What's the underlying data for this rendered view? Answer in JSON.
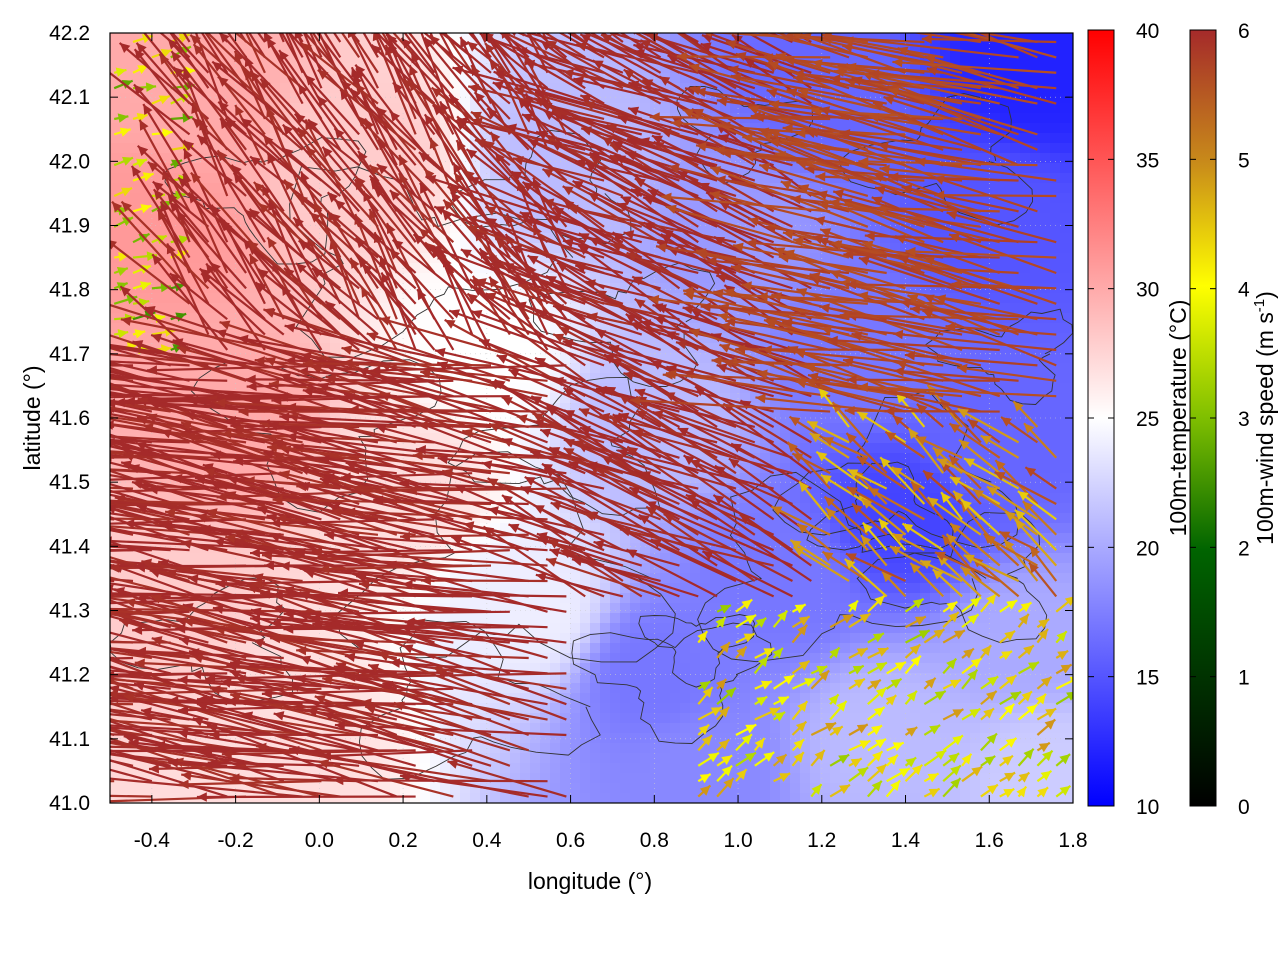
{
  "chart_data": {
    "type": "heatmap",
    "title": "",
    "xlabel": "longitude (°)",
    "ylabel": "latitude (°)",
    "xlim": [
      -0.5,
      1.8
    ],
    "ylim": [
      41.0,
      42.2
    ],
    "x_ticks": [
      "-0.4",
      "-0.2",
      "0.0",
      "0.2",
      "0.4",
      "0.6",
      "0.8",
      "1.0",
      "1.2",
      "1.4",
      "1.6",
      "1.8"
    ],
    "x_tick_values": [
      -0.4,
      -0.2,
      0.0,
      0.2,
      0.4,
      0.6,
      0.8,
      1.0,
      1.2,
      1.4,
      1.6,
      1.8
    ],
    "y_ticks": [
      "41.0",
      "41.1",
      "41.2",
      "41.3",
      "41.4",
      "41.5",
      "41.6",
      "41.7",
      "41.8",
      "41.9",
      "42.0",
      "42.1",
      "42.2"
    ],
    "y_tick_values": [
      41.0,
      41.1,
      41.2,
      41.3,
      41.4,
      41.5,
      41.6,
      41.7,
      41.8,
      41.9,
      42.0,
      42.1,
      42.2
    ],
    "temperature_colorbar": {
      "label": "100m-temperature (°C)",
      "range": [
        10,
        40
      ],
      "ticks": [
        "10",
        "15",
        "20",
        "25",
        "30",
        "35",
        "40"
      ],
      "tick_values": [
        10,
        15,
        20,
        25,
        30,
        35,
        40
      ],
      "colors": [
        "#0000ff",
        "#ffffff",
        "#ff0000"
      ]
    },
    "wind_colorbar": {
      "label_main": "100m-wind speed (m s",
      "label_sup": "-1",
      "label_end": ")",
      "range": [
        0,
        6
      ],
      "ticks": [
        "0",
        "1",
        "2",
        "3",
        "4",
        "5",
        "6"
      ],
      "tick_values": [
        0,
        1,
        2,
        3,
        4,
        5,
        6
      ],
      "colors": [
        "#000000",
        "#006400",
        "#7fbf00",
        "#ffff00",
        "#d4a017",
        "#c0641e",
        "#a52a2a"
      ]
    },
    "temperature_field": {
      "description_regions": [
        {
          "lon": -0.4,
          "lat": 41.9,
          "temp": 31
        },
        {
          "lon": -0.3,
          "lat": 42.1,
          "temp": 30
        },
        {
          "lon": -0.2,
          "lat": 41.6,
          "temp": 30
        },
        {
          "lon": -0.4,
          "lat": 41.3,
          "temp": 28
        },
        {
          "lon": -0.1,
          "lat": 41.1,
          "temp": 27
        },
        {
          "lon": 0.1,
          "lat": 42.0,
          "temp": 28
        },
        {
          "lon": 0.2,
          "lat": 41.5,
          "temp": 27
        },
        {
          "lon": 0.4,
          "lat": 41.7,
          "temp": 25
        },
        {
          "lon": 0.5,
          "lat": 41.3,
          "temp": 24
        },
        {
          "lon": 0.6,
          "lat": 42.0,
          "temp": 21
        },
        {
          "lon": 0.8,
          "lat": 41.6,
          "temp": 21
        },
        {
          "lon": 0.8,
          "lat": 41.2,
          "temp": 17
        },
        {
          "lon": 0.9,
          "lat": 41.05,
          "temp": 18
        },
        {
          "lon": 1.0,
          "lat": 41.9,
          "temp": 19
        },
        {
          "lon": 1.1,
          "lat": 41.35,
          "temp": 17
        },
        {
          "lon": 1.2,
          "lat": 42.1,
          "temp": 16
        },
        {
          "lon": 1.3,
          "lat": 41.7,
          "temp": 17
        },
        {
          "lon": 1.4,
          "lat": 41.45,
          "temp": 14
        },
        {
          "lon": 1.35,
          "lat": 41.1,
          "temp": 21
        },
        {
          "lon": 1.6,
          "lat": 41.9,
          "temp": 15
        },
        {
          "lon": 1.7,
          "lat": 42.15,
          "temp": 12
        },
        {
          "lon": 1.6,
          "lat": 41.55,
          "temp": 16
        },
        {
          "lon": 1.7,
          "lat": 41.25,
          "temp": 20
        },
        {
          "lon": 1.75,
          "lat": 41.05,
          "temp": 22
        }
      ]
    },
    "wind_field": {
      "dominant_flow": "from east / south-east toward north-west over land, speeds mostly 6 m/s; weaker 2-5 m/s south-westerly winds in the south-east corner",
      "vector_groups": [
        {
          "region": "west-central",
          "lon_range": [
            -0.5,
            0.6
          ],
          "lat_range": [
            41.0,
            41.7
          ],
          "speed": 6,
          "dir_deg": 168,
          "length": 0.5
        },
        {
          "region": "north-west",
          "lon_range": [
            -0.5,
            0.6
          ],
          "lat_range": [
            41.7,
            42.2
          ],
          "speed": 6,
          "dir_deg": 120,
          "length": 0.3
        },
        {
          "region": "central",
          "lon_range": [
            0.6,
            1.2
          ],
          "lat_range": [
            41.3,
            42.2
          ],
          "speed": 6,
          "dir_deg": 150,
          "length": 0.35
        },
        {
          "region": "north-east",
          "lon_range": [
            1.2,
            1.8
          ],
          "lat_range": [
            41.6,
            42.2
          ],
          "speed": 5.5,
          "dir_deg": 165,
          "length": 0.4
        },
        {
          "region": "east",
          "lon_range": [
            1.2,
            1.8
          ],
          "lat_range": [
            41.3,
            41.6
          ],
          "speed": 4.5,
          "dir_deg": 135,
          "length": 0.15
        },
        {
          "region": "south-east",
          "lon_range": [
            0.9,
            1.8
          ],
          "lat_range": [
            41.0,
            41.3
          ],
          "speed": 3.2,
          "dir_deg": 45,
          "length": 0.06
        },
        {
          "region": "far-west-edge",
          "lon_range": [
            -0.5,
            -0.35
          ],
          "lat_range": [
            41.7,
            42.2
          ],
          "speed": 2.5,
          "dir_deg": 20,
          "length": 0.05
        }
      ]
    },
    "grid": true,
    "legend": "two colorbars on right"
  }
}
